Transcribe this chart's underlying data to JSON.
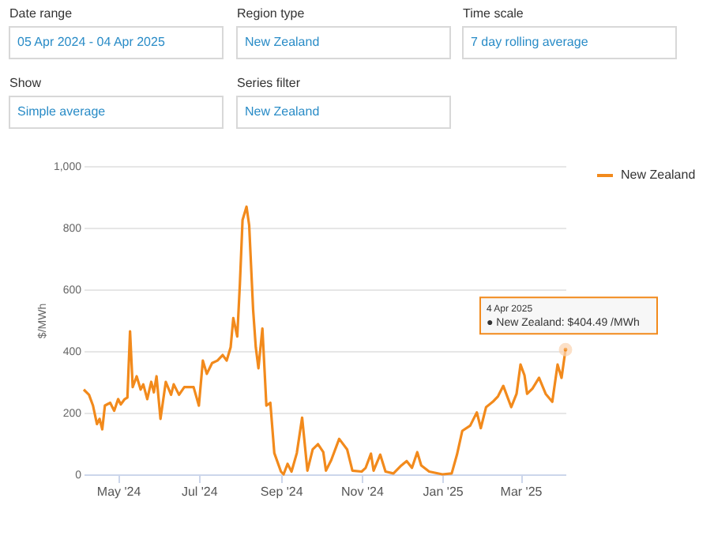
{
  "chart_data": {
    "type": "line",
    "ylabel": "$/MWh",
    "x": [
      "2024-04-05",
      "2024-04-09",
      "2024-04-12",
      "2024-04-15",
      "2024-04-17",
      "2024-04-19",
      "2024-04-21",
      "2024-04-25",
      "2024-04-28",
      "2024-05-01",
      "2024-05-03",
      "2024-05-06",
      "2024-05-08",
      "2024-05-10",
      "2024-05-12",
      "2024-05-15",
      "2024-05-18",
      "2024-05-20",
      "2024-05-23",
      "2024-05-26",
      "2024-05-28",
      "2024-05-30",
      "2024-06-02",
      "2024-06-06",
      "2024-06-10",
      "2024-06-12",
      "2024-06-16",
      "2024-06-20",
      "2024-06-27",
      "2024-07-01",
      "2024-07-04",
      "2024-07-07",
      "2024-07-11",
      "2024-07-15",
      "2024-07-19",
      "2024-07-22",
      "2024-07-25",
      "2024-07-27",
      "2024-07-30",
      "2024-08-01",
      "2024-08-03",
      "2024-08-06",
      "2024-08-08",
      "2024-08-11",
      "2024-08-13",
      "2024-08-15",
      "2024-08-18",
      "2024-08-21",
      "2024-08-24",
      "2024-08-27",
      "2024-09-01",
      "2024-09-03",
      "2024-09-06",
      "2024-09-09",
      "2024-09-13",
      "2024-09-17",
      "2024-09-21",
      "2024-09-25",
      "2024-09-29",
      "2024-10-03",
      "2024-10-05",
      "2024-10-09",
      "2024-10-15",
      "2024-10-21",
      "2024-10-25",
      "2024-11-01",
      "2024-11-04",
      "2024-11-08",
      "2024-11-10",
      "2024-11-15",
      "2024-11-19",
      "2024-11-25",
      "2024-12-01",
      "2024-12-05",
      "2024-12-09",
      "2024-12-13",
      "2024-12-16",
      "2024-12-22",
      "2025-01-01",
      "2025-01-08",
      "2025-01-12",
      "2025-01-16",
      "2025-01-22",
      "2025-01-27",
      "2025-01-30",
      "2025-02-03",
      "2025-02-08",
      "2025-02-12",
      "2025-02-16",
      "2025-02-22",
      "2025-02-26",
      "2025-03-01",
      "2025-03-04",
      "2025-03-06",
      "2025-03-10",
      "2025-03-15",
      "2025-03-20",
      "2025-03-25",
      "2025-03-29",
      "2025-04-01",
      "2025-04-04"
    ],
    "series": [
      {
        "name": "New Zealand",
        "color": "#f28a1c",
        "values": [
          275,
          258,
          223,
          163,
          180,
          146,
          223,
          232,
          206,
          244,
          227,
          244,
          249,
          464,
          283,
          318,
          275,
          292,
          244,
          300,
          266,
          318,
          180,
          300,
          258,
          292,
          258,
          283,
          283,
          223,
          369,
          326,
          361,
          369,
          387,
          369,
          412,
          507,
          447,
          619,
          825,
          868,
          808,
          533,
          412,
          344,
          473,
          223,
          232,
          69,
          9,
          0,
          34,
          9,
          69,
          184,
          12,
          81,
          98,
          72,
          12,
          46,
          115,
          81,
          12,
          9,
          21,
          67,
          12,
          64,
          9,
          3,
          29,
          43,
          21,
          72,
          29,
          9,
          0,
          3,
          64,
          141,
          158,
          201,
          150,
          218,
          235,
          253,
          287,
          218,
          261,
          356,
          321,
          261,
          278,
          313,
          261,
          235,
          356,
          313,
          404.49
        ]
      }
    ],
    "xlim": [
      "2024-04-05",
      "2025-04-04"
    ],
    "xticks": [
      {
        "value": "2024-05-01",
        "label": "May '24"
      },
      {
        "value": "2024-07-01",
        "label": "Jul '24"
      },
      {
        "value": "2024-09-01",
        "label": "Sep '24"
      },
      {
        "value": "2024-11-01",
        "label": "Nov '24"
      },
      {
        "value": "2025-01-01",
        "label": "Jan '25"
      },
      {
        "value": "2025-03-01",
        "label": "Mar '25"
      }
    ],
    "ylim": [
      0,
      1000
    ],
    "yticks": [
      0,
      200,
      400,
      600,
      800,
      {
        "value": 1000,
        "label": "1,000"
      }
    ],
    "grid": "y",
    "legend": "right",
    "marker": "none",
    "line_style": "solid",
    "annotations": [
      "Date range",
      "05 Apr 2024 - 04 Apr 2025",
      "Region type",
      "New Zealand",
      "Time scale",
      "7 day rolling average",
      "Show",
      "Simple average",
      "Series filter",
      "New Zealand",
      "4 Apr 2025",
      "● New Zealand: $404.49 /MWh"
    ]
  }
}
